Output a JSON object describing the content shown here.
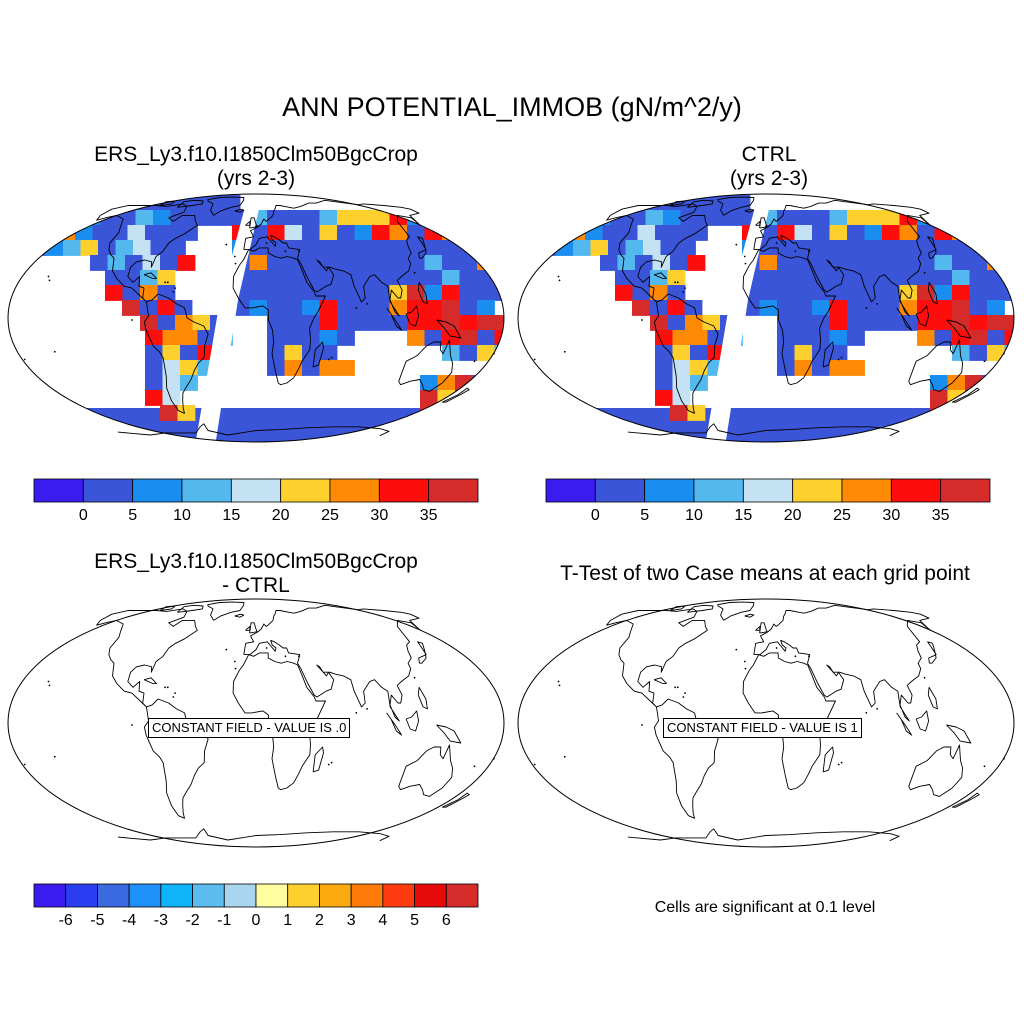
{
  "title": "ANN POTENTIAL_IMMOB (gN/m^2/y)",
  "panels": [
    {
      "id": "test",
      "title_line1": "ERS_Ly3.f10.I1850Clm50BgcCrop",
      "title_line2": "(yrs 2-3)"
    },
    {
      "id": "ctrl",
      "title_line1": "CTRL",
      "title_line2": "(yrs 2-3)"
    },
    {
      "id": "diff",
      "title_line1": "ERS_Ly3.f10.I1850Clm50BgcCrop",
      "title_line2": "- CTRL",
      "message": "CONSTANT FIELD - VALUE IS .0"
    },
    {
      "id": "ttest",
      "title_line1": "T-Test of two Case means at each grid point",
      "message": "CONSTANT FIELD - VALUE IS 1"
    }
  ],
  "colorbar_abs": {
    "colors": [
      "#3a1cf0",
      "#3b55d8",
      "#1a8ef0",
      "#52b8ee",
      "#c4e2f4",
      "#fdd02e",
      "#fe8a06",
      "#fe0d0d",
      "#d62b2b"
    ],
    "labels": [
      "0",
      "5",
      "10",
      "15",
      "20",
      "25",
      "30",
      "35"
    ]
  },
  "colorbar_diff": {
    "colors": [
      "#3a1cf0",
      "#2a3df0",
      "#3a6ae0",
      "#1e90f8",
      "#10b4f8",
      "#5cbcef",
      "#a8d6ef",
      "#fefea0",
      "#fdd02e",
      "#fdaa10",
      "#fe7a0a",
      "#fe3c10",
      "#e60b0b",
      "#d62b2b"
    ],
    "labels": [
      "-6",
      "-5",
      "-4",
      "-3",
      "-2",
      "-1",
      "0",
      "1",
      "2",
      "3",
      "4",
      "5",
      "6"
    ]
  },
  "significance_note": "Cells are significant at 0.1 level"
}
